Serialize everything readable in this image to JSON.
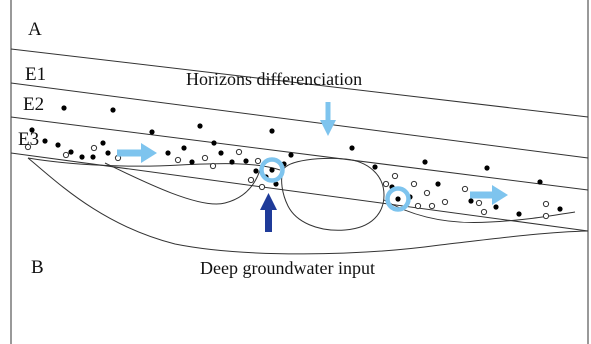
{
  "horizons": {
    "a": "A",
    "e1": "E1",
    "e2": "E2",
    "e3": "E3",
    "b": "B"
  },
  "annotations": {
    "top": "Horizons differenciation",
    "bottom": "Deep groundwater input"
  },
  "colors": {
    "lightblue": "#7ec4ee",
    "darkblue": "#1f3b99",
    "dot": "#000000",
    "line": "#333333"
  },
  "legend_icons": [
    "filled-dot-icon",
    "hollow-dot-icon",
    "ring-icon",
    "arrow-icon"
  ]
}
